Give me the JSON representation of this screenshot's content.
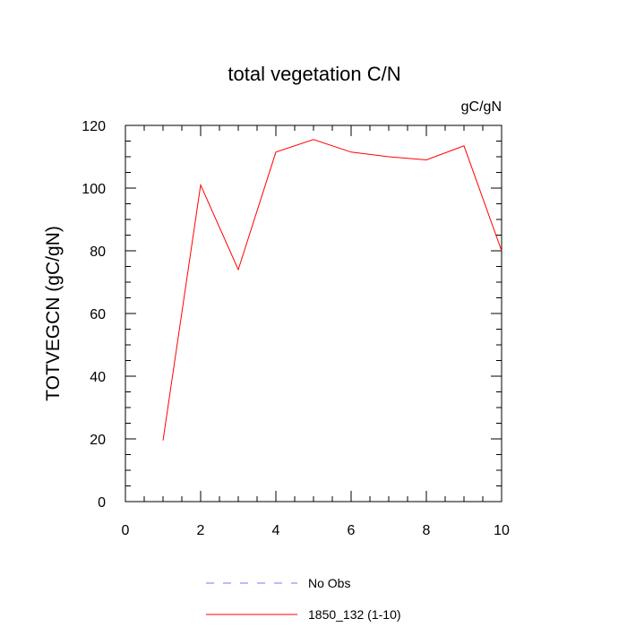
{
  "chart_data": {
    "type": "line",
    "title": "total vegetation C/N",
    "units": "gC/gN",
    "xlabel": "",
    "ylabel": "TOTVEGCN  (gC/gN)",
    "xlim": [
      0,
      10
    ],
    "ylim": [
      0,
      120
    ],
    "x_ticks": [
      "0",
      "2",
      "4",
      "6",
      "8",
      "10"
    ],
    "y_ticks": [
      "0",
      "20",
      "40",
      "60",
      "80",
      "100",
      "120"
    ],
    "grid": false,
    "legend_position": "bottom",
    "series": [
      {
        "name": "No Obs",
        "color": "#7777ff",
        "style": "dashed",
        "x": [],
        "y": []
      },
      {
        "name": "1850_132 (1-10)",
        "color": "#ff0000",
        "style": "solid",
        "x": [
          1,
          2,
          3,
          4,
          5,
          6,
          7,
          8,
          9,
          10
        ],
        "y": [
          19.5,
          101,
          74,
          111.5,
          115.5,
          111.5,
          110,
          109,
          113.5,
          80
        ]
      }
    ]
  }
}
